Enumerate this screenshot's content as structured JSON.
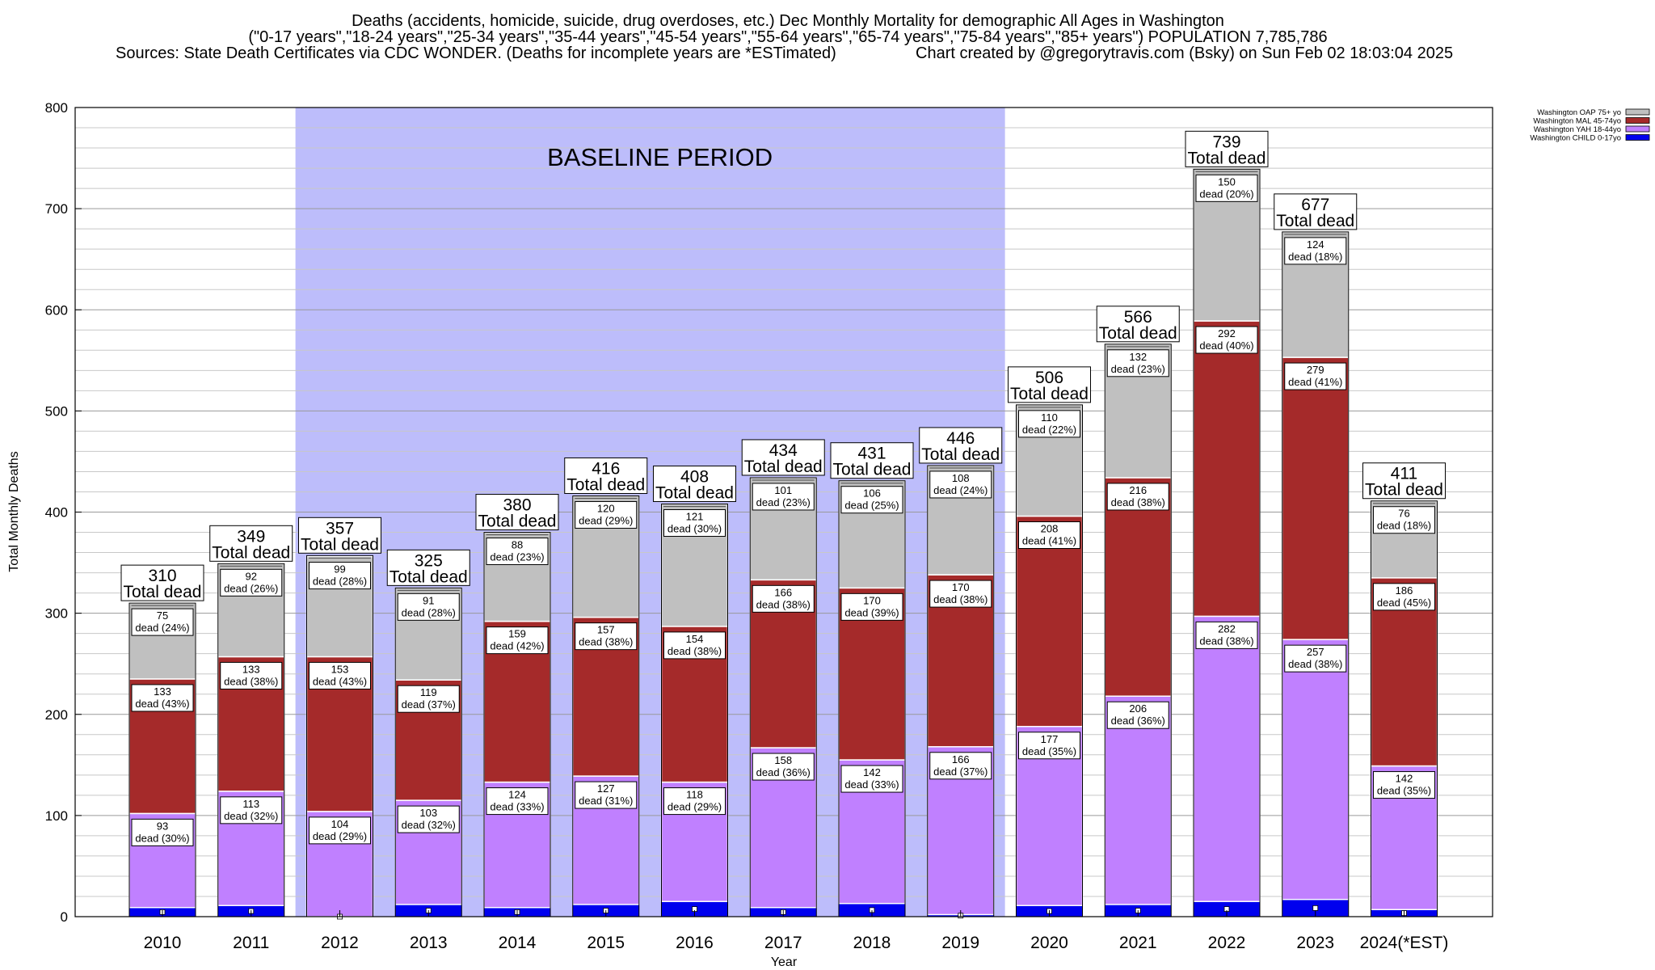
{
  "header": {
    "line1": "Deaths (accidents, homicide, suicide, drug overdoses, etc.) Dec Monthly Mortality for demographic All Ages in Washington",
    "line2": "(\"0-17 years\",\"18-24 years\",\"25-34 years\",\"35-44 years\",\"45-54 years\",\"55-64 years\",\"65-74 years\",\"75-84 years\",\"85+ years\") POPULATION 7,785,786",
    "line3_left": "Sources: State Death Certificates via CDC WONDER. (Deaths for incomplete years are *ESTimated)",
    "line3_right": "Chart created by @gregorytravis.com (Bsky) on Sun Feb 02 18:03:04 2025"
  },
  "chart_data": {
    "type": "bar",
    "stacked": true,
    "categories": [
      "2010",
      "2011",
      "2012",
      "2013",
      "2014",
      "2015",
      "2016",
      "2017",
      "2018",
      "2019",
      "2020",
      "2021",
      "2022",
      "2023",
      "2024(*EST)"
    ],
    "xlabel": "Year",
    "ylabel": "Total Monthly Deaths",
    "ylim": [
      0,
      800
    ],
    "yticks": [
      0,
      100,
      200,
      300,
      400,
      500,
      600,
      700,
      800
    ],
    "grid": true,
    "legend_position": "top-right",
    "baseline_period": {
      "label": "BASELINE PERIOD",
      "from": "2012",
      "to": "2019",
      "color": "#bdbdfb"
    },
    "total_suffix": "Total dead",
    "segment_suffix": "dead",
    "series": [
      {
        "name": "Washington CHILD 0-17yo",
        "color": "#0000ee",
        "show_labels": false,
        "values": [
          9,
          11,
          0,
          12,
          9,
          12,
          15,
          9,
          13,
          2,
          11,
          12,
          15,
          17,
          7
        ]
      },
      {
        "name": "Washington YAH 18-44yo",
        "color": "#c080ff",
        "show_labels": true,
        "values": [
          93,
          113,
          104,
          103,
          124,
          127,
          118,
          158,
          142,
          166,
          177,
          206,
          282,
          257,
          142
        ],
        "percents": [
          30,
          32,
          29,
          32,
          33,
          31,
          29,
          36,
          33,
          37,
          35,
          36,
          38,
          38,
          35
        ]
      },
      {
        "name": "Washington MAL 45-74yo",
        "color": "#a52a2a",
        "show_labels": true,
        "values": [
          133,
          133,
          153,
          119,
          159,
          157,
          154,
          166,
          170,
          170,
          208,
          216,
          292,
          279,
          186
        ],
        "percents": [
          43,
          38,
          43,
          37,
          42,
          38,
          38,
          38,
          39,
          38,
          41,
          38,
          40,
          41,
          45
        ]
      },
      {
        "name": "Washington OAP 75+ yo",
        "color": "#c0c0c0",
        "show_labels": true,
        "values": [
          75,
          92,
          99,
          91,
          88,
          120,
          121,
          101,
          106,
          108,
          110,
          132,
          150,
          124,
          76
        ],
        "percents": [
          24,
          26,
          28,
          28,
          23,
          29,
          30,
          23,
          25,
          24,
          22,
          23,
          20,
          18,
          18
        ]
      }
    ],
    "totals": [
      310,
      349,
      357,
      325,
      380,
      416,
      408,
      434,
      431,
      446,
      506,
      566,
      739,
      677,
      411
    ]
  }
}
